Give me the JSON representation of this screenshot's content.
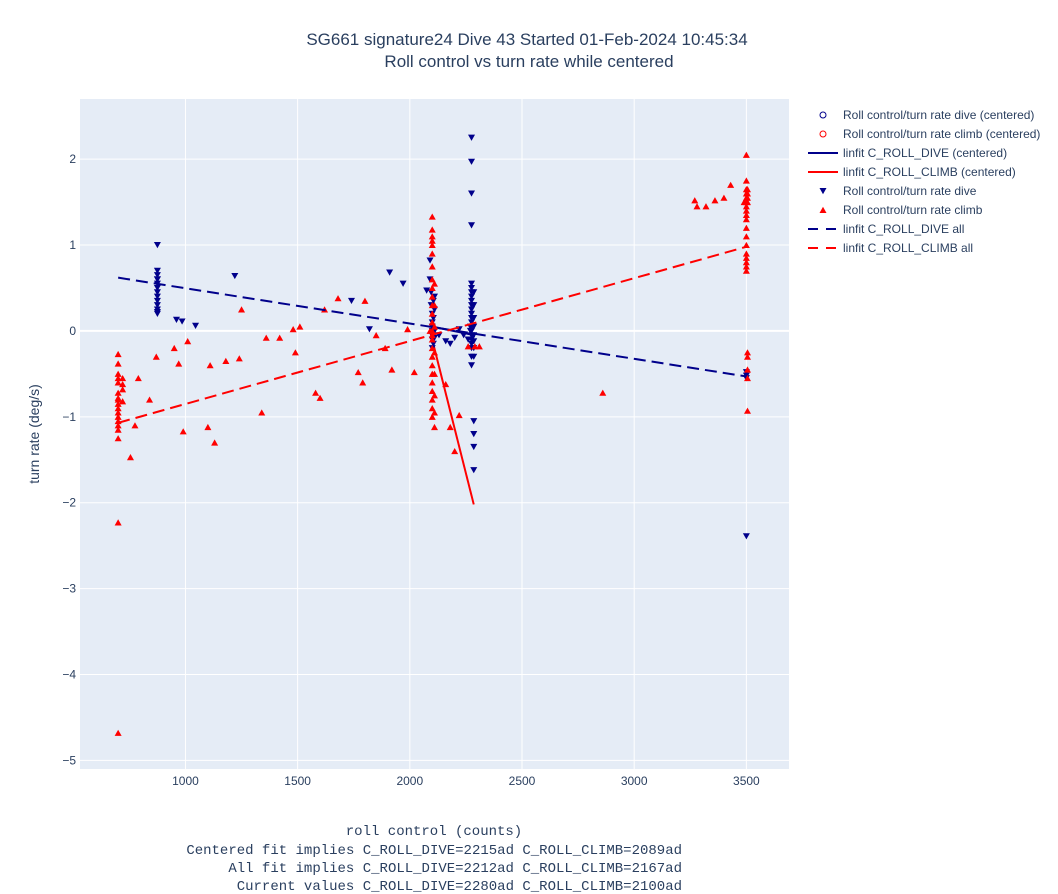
{
  "chart_data": {
    "type": "scatter",
    "title": "SG661 signature24 Dive 43 Started 01-Feb-2024 10:45:34",
    "subtitle": "Roll control vs turn rate while centered",
    "xlabel": "roll control (counts)",
    "ylabel": "turn rate (deg/s)",
    "xlabel_notes": [
      "Centered fit implies C_ROLL_DIVE=2215ad C_ROLL_CLIMB=2089ad",
      "All fit implies C_ROLL_DIVE=2212ad C_ROLL_CLIMB=2167ad",
      "Current values C_ROLL_DIVE=2280ad C_ROLL_CLIMB=2100ad"
    ],
    "xlim": [
      530,
      3690
    ],
    "ylim": [
      -5.1,
      2.7
    ],
    "xticks": [
      1000,
      1500,
      2000,
      2500,
      3000,
      3500
    ],
    "xtick_labels": [
      "1000",
      "1500",
      "2000",
      "2500",
      "3000",
      "3500"
    ],
    "yticks": [
      -5,
      -4,
      -3,
      -2,
      -1,
      0,
      1,
      2
    ],
    "ytick_labels": [
      "−5",
      "−4",
      "−3",
      "−2",
      "−1",
      "0",
      "1",
      "2"
    ],
    "grid": true,
    "legend_position": "top-right",
    "colors": {
      "dive": "#00008b",
      "climb": "#ff0000",
      "plot_bg": "#e5ecf6",
      "grid": "#ffffff"
    },
    "series": [
      {
        "name": "Roll control/turn rate dive (centered)",
        "mode": "markers",
        "marker": "circle-open",
        "color": "#00008b",
        "x": [],
        "y": []
      },
      {
        "name": "Roll control/turn rate climb (centered)",
        "mode": "markers",
        "marker": "circle-open",
        "color": "#ff0000",
        "x": [],
        "y": []
      },
      {
        "name": "linfit C_ROLL_DIVE (centered)",
        "mode": "line",
        "dash": "solid",
        "color": "#00008b",
        "x": [
          2100,
          2290
        ],
        "y": [
          0.05,
          -0.05
        ]
      },
      {
        "name": "linfit C_ROLL_CLIMB (centered)",
        "mode": "line",
        "dash": "solid",
        "color": "#ff0000",
        "x": [
          2090,
          2285
        ],
        "y": [
          0.0,
          -2.02
        ]
      },
      {
        "name": "Roll control/turn rate dive",
        "mode": "markers",
        "marker": "triangle-down",
        "color": "#00008b",
        "x": [
          875,
          875,
          875,
          875,
          875,
          875,
          875,
          875,
          875,
          875,
          875,
          875,
          875,
          875,
          960,
          985,
          1045,
          1220,
          1740,
          1820,
          1910,
          1970,
          2075,
          2090,
          2090,
          2095,
          2095,
          2100,
          2100,
          2100,
          2100,
          2100,
          2100,
          2100,
          2105,
          2105,
          2105,
          2110,
          2110,
          2110,
          2110,
          2130,
          2160,
          2180,
          2200,
          2220,
          2240,
          2260,
          2270,
          2270,
          2275,
          2275,
          2275,
          2275,
          2275,
          2275,
          2275,
          2275,
          2275,
          2275,
          2275,
          2275,
          2275,
          2275,
          2275,
          2275,
          2275,
          2275,
          2275,
          2275,
          2275,
          2275,
          2285,
          2285,
          2285,
          2285,
          2285,
          2285,
          2285,
          2285,
          2285,
          2285,
          2285,
          2285,
          3500,
          3500,
          3500,
          3500
        ],
        "y": [
          1.0,
          0.7,
          0.65,
          0.6,
          0.55,
          0.5,
          0.45,
          0.4,
          0.35,
          0.3,
          0.25,
          0.22,
          0.2,
          0.6,
          0.13,
          0.11,
          0.06,
          0.64,
          0.35,
          0.02,
          0.68,
          0.55,
          0.47,
          0.82,
          0.6,
          0.45,
          0.3,
          0.2,
          0.1,
          0.05,
          0.0,
          -0.05,
          -0.1,
          -0.2,
          0.35,
          0.15,
          -0.15,
          0.25,
          0.0,
          -0.08,
          0.4,
          -0.05,
          -0.12,
          -0.15,
          -0.08,
          0.02,
          -0.05,
          -0.1,
          0.0,
          0.05,
          2.25,
          1.97,
          1.6,
          1.23,
          0.55,
          0.5,
          0.45,
          0.4,
          0.35,
          0.3,
          0.25,
          0.2,
          0.15,
          0.1,
          0.05,
          0.0,
          -0.05,
          -0.1,
          -0.15,
          -0.2,
          -0.3,
          -0.4,
          0.45,
          0.3,
          0.15,
          0.05,
          -0.05,
          -0.12,
          -0.2,
          -0.3,
          -1.05,
          -1.2,
          -1.35,
          -1.62,
          -2.39,
          -0.48,
          -0.52,
          -0.55
        ]
      },
      {
        "name": "Roll control/turn rate climb",
        "mode": "markers",
        "marker": "triangle-up",
        "color": "#ff0000",
        "x": [
          700,
          700,
          700,
          700,
          700,
          700,
          700,
          700,
          700,
          700,
          700,
          700,
          700,
          700,
          700,
          700,
          700,
          700,
          720,
          720,
          720,
          720,
          755,
          775,
          790,
          840,
          870,
          950,
          970,
          990,
          1010,
          1100,
          1110,
          1130,
          1180,
          1240,
          1250,
          1340,
          1360,
          1420,
          1480,
          1490,
          1510,
          1580,
          1600,
          1620,
          1680,
          1770,
          1790,
          1800,
          1850,
          1890,
          1920,
          1990,
          2020,
          2090,
          2100,
          2100,
          2100,
          2100,
          2100,
          2100,
          2100,
          2100,
          2100,
          2100,
          2100,
          2100,
          2100,
          2100,
          2100,
          2100,
          2100,
          2100,
          2100,
          2100,
          2100,
          2100,
          2100,
          2100,
          2100,
          2110,
          2110,
          2110,
          2110,
          2110,
          2110,
          2110,
          2110,
          2160,
          2180,
          2200,
          2220,
          2260,
          2290,
          2310,
          2860,
          3270,
          3280,
          3320,
          3360,
          3400,
          3430,
          3490,
          3500,
          3500,
          3500,
          3500,
          3500,
          3500,
          3500,
          3500,
          3500,
          3500,
          3500,
          3500,
          3500,
          3500,
          3500,
          3500,
          3500,
          3500,
          3505,
          3505,
          3505,
          3505,
          3505,
          3505,
          3505,
          3505,
          3505
        ],
        "y": [
          -4.68,
          -2.23,
          -1.25,
          -1.15,
          -1.1,
          -1.05,
          -1.0,
          -0.95,
          -0.9,
          -0.85,
          -0.8,
          -0.78,
          -0.72,
          -0.6,
          -0.55,
          -0.5,
          -0.38,
          -0.27,
          -0.55,
          -0.62,
          -0.68,
          -0.82,
          -1.47,
          -1.1,
          -0.55,
          -0.8,
          -0.3,
          -0.2,
          -0.38,
          -1.17,
          -0.12,
          -1.12,
          -0.4,
          -1.3,
          -0.35,
          -0.32,
          0.25,
          -0.95,
          -0.08,
          -0.08,
          0.02,
          -0.25,
          0.05,
          -0.72,
          -0.78,
          0.25,
          0.38,
          -0.48,
          -0.6,
          0.35,
          -0.05,
          -0.2,
          -0.45,
          0.02,
          -0.48,
          0.0,
          -0.05,
          1.33,
          1.18,
          1.1,
          1.05,
          1.0,
          0.9,
          0.75,
          0.6,
          0.5,
          0.4,
          0.3,
          0.2,
          0.1,
          0.0,
          -0.1,
          -0.2,
          -0.3,
          -0.4,
          -0.5,
          -0.6,
          -0.7,
          -0.8,
          -0.9,
          -1.0,
          -1.12,
          -0.95,
          -0.75,
          -0.5,
          -0.25,
          0.05,
          0.3,
          0.55,
          -0.62,
          -1.12,
          -1.4,
          -0.98,
          -0.18,
          -0.18,
          -0.18,
          -0.72,
          1.52,
          1.45,
          1.45,
          1.52,
          1.55,
          1.7,
          1.5,
          2.05,
          1.75,
          1.65,
          1.6,
          1.55,
          1.5,
          1.45,
          1.4,
          1.35,
          1.3,
          1.2,
          1.1,
          1.0,
          0.9,
          0.85,
          0.8,
          0.75,
          0.7,
          1.65,
          1.6,
          1.55,
          1.5,
          -0.25,
          -0.3,
          -0.45,
          -0.55,
          -0.93
        ]
      },
      {
        "name": "linfit C_ROLL_DIVE all",
        "mode": "line",
        "dash": "dash",
        "color": "#00008b",
        "x": [
          700,
          3500
        ],
        "y": [
          0.62,
          -0.53
        ]
      },
      {
        "name": "linfit C_ROLL_CLIMB all",
        "mode": "line",
        "dash": "dash",
        "color": "#ff0000",
        "x": [
          700,
          3500
        ],
        "y": [
          -1.07,
          0.98
        ]
      }
    ]
  }
}
